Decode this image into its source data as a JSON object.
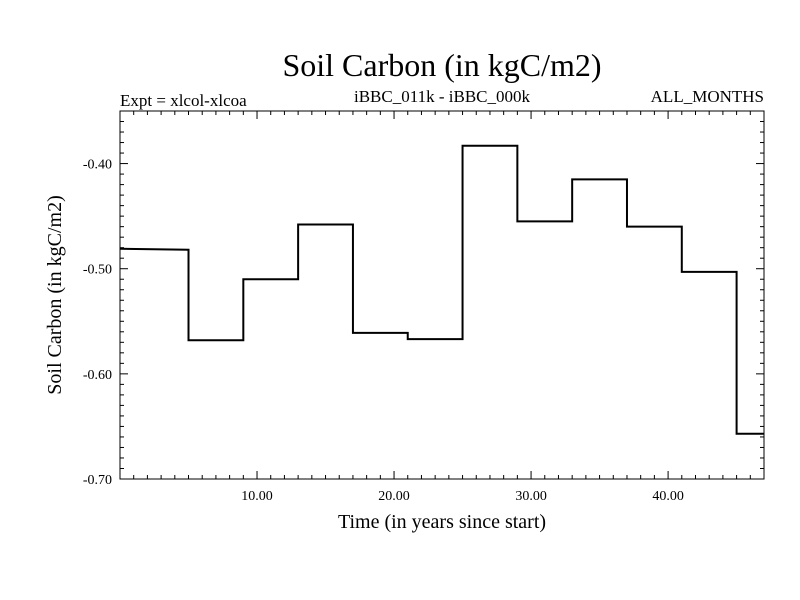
{
  "chart_data": {
    "type": "line",
    "step": true,
    "title": "Soil Carbon (in kgC/m2)",
    "header_left": "Expt = xlcol-xlcoa",
    "header_center": "iBBC_011k - iBBC_000k",
    "header_right": "ALL_MONTHS",
    "xlabel": "Time (in years since start)",
    "ylabel": "Soil Carbon (in kgC/m2)",
    "xlim": [
      0,
      47
    ],
    "ylim": [
      -0.7,
      -0.35
    ],
    "x_ticks": [
      10,
      20,
      30,
      40
    ],
    "x_tick_labels": [
      "10.00",
      "20.00",
      "30.00",
      "40.00"
    ],
    "y_ticks": [
      -0.4,
      -0.5,
      -0.6,
      -0.7
    ],
    "y_tick_labels": [
      "-0.40",
      "-0.50",
      "-0.60",
      "-0.70"
    ],
    "x_minor_step": 1,
    "y_minor_step": 0.01,
    "grid": false,
    "line_color": "#000000",
    "series": [
      {
        "x": [
          0,
          5,
          5,
          9,
          9,
          13,
          13,
          17,
          17,
          21,
          21,
          25,
          25,
          29,
          29,
          33,
          33,
          37,
          37,
          41,
          41,
          45,
          45,
          47
        ],
        "values": [
          -0.481,
          -0.482,
          -0.568,
          -0.568,
          -0.51,
          -0.51,
          -0.458,
          -0.458,
          -0.561,
          -0.561,
          -0.567,
          -0.567,
          -0.383,
          -0.383,
          -0.455,
          -0.455,
          -0.415,
          -0.415,
          -0.46,
          -0.46,
          -0.503,
          -0.503,
          -0.657,
          -0.657
        ]
      }
    ]
  }
}
